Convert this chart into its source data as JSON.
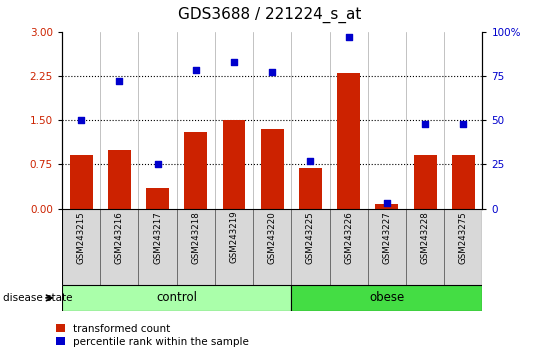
{
  "title": "GDS3688 / 221224_s_at",
  "samples": [
    "GSM243215",
    "GSM243216",
    "GSM243217",
    "GSM243218",
    "GSM243219",
    "GSM243220",
    "GSM243225",
    "GSM243226",
    "GSM243227",
    "GSM243228",
    "GSM243275"
  ],
  "transformed_count": [
    0.9,
    1.0,
    0.35,
    1.3,
    1.5,
    1.35,
    0.68,
    2.3,
    0.07,
    0.9,
    0.9
  ],
  "percentile_rank": [
    50,
    72,
    25,
    78,
    83,
    77,
    27,
    97,
    3,
    48,
    48
  ],
  "n_control": 6,
  "ylim_left": [
    0,
    3
  ],
  "ylim_right": [
    0,
    100
  ],
  "yticks_left": [
    0,
    0.75,
    1.5,
    2.25,
    3
  ],
  "yticks_right": [
    0,
    25,
    50,
    75,
    100
  ],
  "bar_color": "#CC2200",
  "dot_color": "#0000CC",
  "title_fontsize": 11,
  "control_color": "#AAFFAA",
  "obese_color": "#44DD44",
  "tick_label_color_left": "#CC2200",
  "tick_label_color_right": "#0000CC",
  "legend_labels": [
    "transformed count",
    "percentile rank within the sample"
  ],
  "disease_state_label": "disease state",
  "bar_width": 0.6,
  "dot_size": 22
}
